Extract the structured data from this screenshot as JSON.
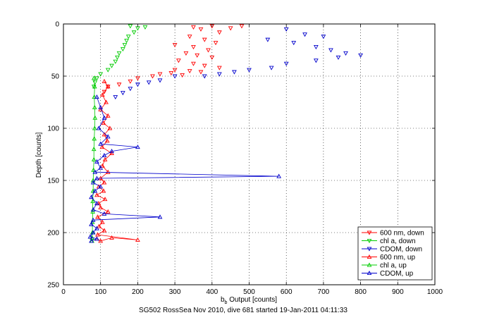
{
  "chart_data": {
    "type": "scatter",
    "xlabel_main": "b",
    "xlabel_sub": "b",
    "xlabel_rest": " Output [counts]",
    "ylabel": "Depth [counts]",
    "caption": "SG502 RossSea Nov 2010, dive 681 started 19-Jan-2011 04:11:33",
    "xlim": [
      0,
      1000
    ],
    "ylim": [
      0,
      250
    ],
    "y_reversed": true,
    "grid": true,
    "legend_position": "bottom-right",
    "xticks": [
      0,
      100,
      200,
      300,
      400,
      500,
      600,
      700,
      800,
      900,
      1000
    ],
    "yticks": [
      0,
      50,
      100,
      150,
      200,
      250
    ],
    "series": [
      {
        "name": "600 nm, down",
        "color": "#ff0000",
        "marker": "tri-down",
        "connected": false,
        "points": [
          [
            350,
            3
          ],
          [
            370,
            5
          ],
          [
            400,
            2
          ],
          [
            420,
            8
          ],
          [
            450,
            4
          ],
          [
            480,
            2
          ],
          [
            340,
            12
          ],
          [
            380,
            15
          ],
          [
            410,
            18
          ],
          [
            300,
            20
          ],
          [
            350,
            22
          ],
          [
            390,
            25
          ],
          [
            330,
            28
          ],
          [
            360,
            30
          ],
          [
            400,
            32
          ],
          [
            310,
            35
          ],
          [
            350,
            38
          ],
          [
            380,
            40
          ],
          [
            420,
            42
          ],
          [
            300,
            44
          ],
          [
            340,
            45
          ],
          [
            370,
            46
          ],
          [
            290,
            47
          ],
          [
            260,
            48
          ],
          [
            320,
            49
          ],
          [
            240,
            50
          ],
          [
            200,
            52
          ],
          [
            180,
            55
          ],
          [
            150,
            58
          ],
          [
            120,
            60
          ],
          [
            110,
            65
          ]
        ]
      },
      {
        "name": "chl a, down",
        "color": "#00cc00",
        "marker": "tri-down",
        "connected": false,
        "points": [
          [
            180,
            2
          ],
          [
            200,
            4
          ],
          [
            220,
            3
          ],
          [
            190,
            8
          ],
          [
            175,
            12
          ],
          [
            170,
            16
          ],
          [
            165,
            20
          ],
          [
            160,
            24
          ],
          [
            150,
            28
          ],
          [
            145,
            32
          ],
          [
            140,
            36
          ],
          [
            130,
            40
          ],
          [
            120,
            44
          ],
          [
            100,
            48
          ],
          [
            90,
            52
          ],
          [
            85,
            56
          ],
          [
            82,
            60
          ]
        ]
      },
      {
        "name": "CDOM, down",
        "color": "#0000cc",
        "marker": "tri-down",
        "connected": false,
        "points": [
          [
            600,
            5
          ],
          [
            650,
            10
          ],
          [
            700,
            12
          ],
          [
            550,
            15
          ],
          [
            620,
            18
          ],
          [
            680,
            22
          ],
          [
            720,
            25
          ],
          [
            760,
            28
          ],
          [
            800,
            30
          ],
          [
            740,
            32
          ],
          [
            680,
            35
          ],
          [
            600,
            38
          ],
          [
            560,
            42
          ],
          [
            500,
            44
          ],
          [
            460,
            46
          ],
          [
            420,
            48
          ],
          [
            380,
            50
          ],
          [
            300,
            50
          ],
          [
            260,
            54
          ],
          [
            230,
            56
          ],
          [
            200,
            58
          ],
          [
            180,
            62
          ],
          [
            160,
            66
          ],
          [
            140,
            70
          ]
        ]
      },
      {
        "name": "600 nm, up",
        "color": "#ff0000",
        "marker": "tri-up",
        "connected": true,
        "points": [
          [
            110,
            55
          ],
          [
            120,
            60
          ],
          [
            105,
            68
          ],
          [
            115,
            75
          ],
          [
            100,
            82
          ],
          [
            120,
            88
          ],
          [
            108,
            95
          ],
          [
            125,
            100
          ],
          [
            110,
            106
          ],
          [
            118,
            112
          ],
          [
            104,
            118
          ],
          [
            130,
            124
          ],
          [
            112,
            130
          ],
          [
            105,
            136
          ],
          [
            120,
            142
          ],
          [
            100,
            148
          ],
          [
            110,
            152
          ],
          [
            95,
            156
          ],
          [
            108,
            160
          ],
          [
            90,
            164
          ],
          [
            112,
            168
          ],
          [
            95,
            172
          ],
          [
            100,
            176
          ],
          [
            120,
            180
          ],
          [
            92,
            185
          ],
          [
            105,
            190
          ],
          [
            96,
            194
          ],
          [
            110,
            198
          ],
          [
            92,
            202
          ],
          [
            200,
            207
          ],
          [
            130,
            205
          ],
          [
            100,
            208
          ],
          [
            90,
            206
          ]
        ]
      },
      {
        "name": "chl a, up",
        "color": "#00cc00",
        "marker": "tri-up",
        "connected": true,
        "points": [
          [
            82,
            52
          ],
          [
            84,
            60
          ],
          [
            83,
            70
          ],
          [
            84,
            80
          ],
          [
            85,
            90
          ],
          [
            84,
            100
          ],
          [
            83,
            110
          ],
          [
            82,
            120
          ],
          [
            82,
            130
          ],
          [
            81,
            140
          ],
          [
            80,
            150
          ],
          [
            80,
            160
          ],
          [
            79,
            170
          ],
          [
            79,
            180
          ],
          [
            78,
            190
          ],
          [
            78,
            200
          ],
          [
            77,
            205
          ],
          [
            77,
            208
          ]
        ]
      },
      {
        "name": "CDOM, up",
        "color": "#0000cc",
        "marker": "tri-up",
        "connected": true,
        "points": [
          [
            90,
            70
          ],
          [
            100,
            80
          ],
          [
            110,
            90
          ],
          [
            95,
            100
          ],
          [
            120,
            108
          ],
          [
            100,
            115
          ],
          [
            200,
            118
          ],
          [
            130,
            122
          ],
          [
            110,
            126
          ],
          [
            90,
            132
          ],
          [
            100,
            138
          ],
          [
            85,
            142
          ],
          [
            580,
            146
          ],
          [
            90,
            148
          ],
          [
            80,
            152
          ],
          [
            100,
            156
          ],
          [
            85,
            160
          ],
          [
            75,
            166
          ],
          [
            90,
            172
          ],
          [
            80,
            178
          ],
          [
            110,
            182
          ],
          [
            260,
            185
          ],
          [
            80,
            188
          ],
          [
            75,
            192
          ],
          [
            90,
            196
          ],
          [
            80,
            200
          ],
          [
            72,
            204
          ],
          [
            90,
            206
          ],
          [
            75,
            208
          ]
        ]
      }
    ]
  }
}
